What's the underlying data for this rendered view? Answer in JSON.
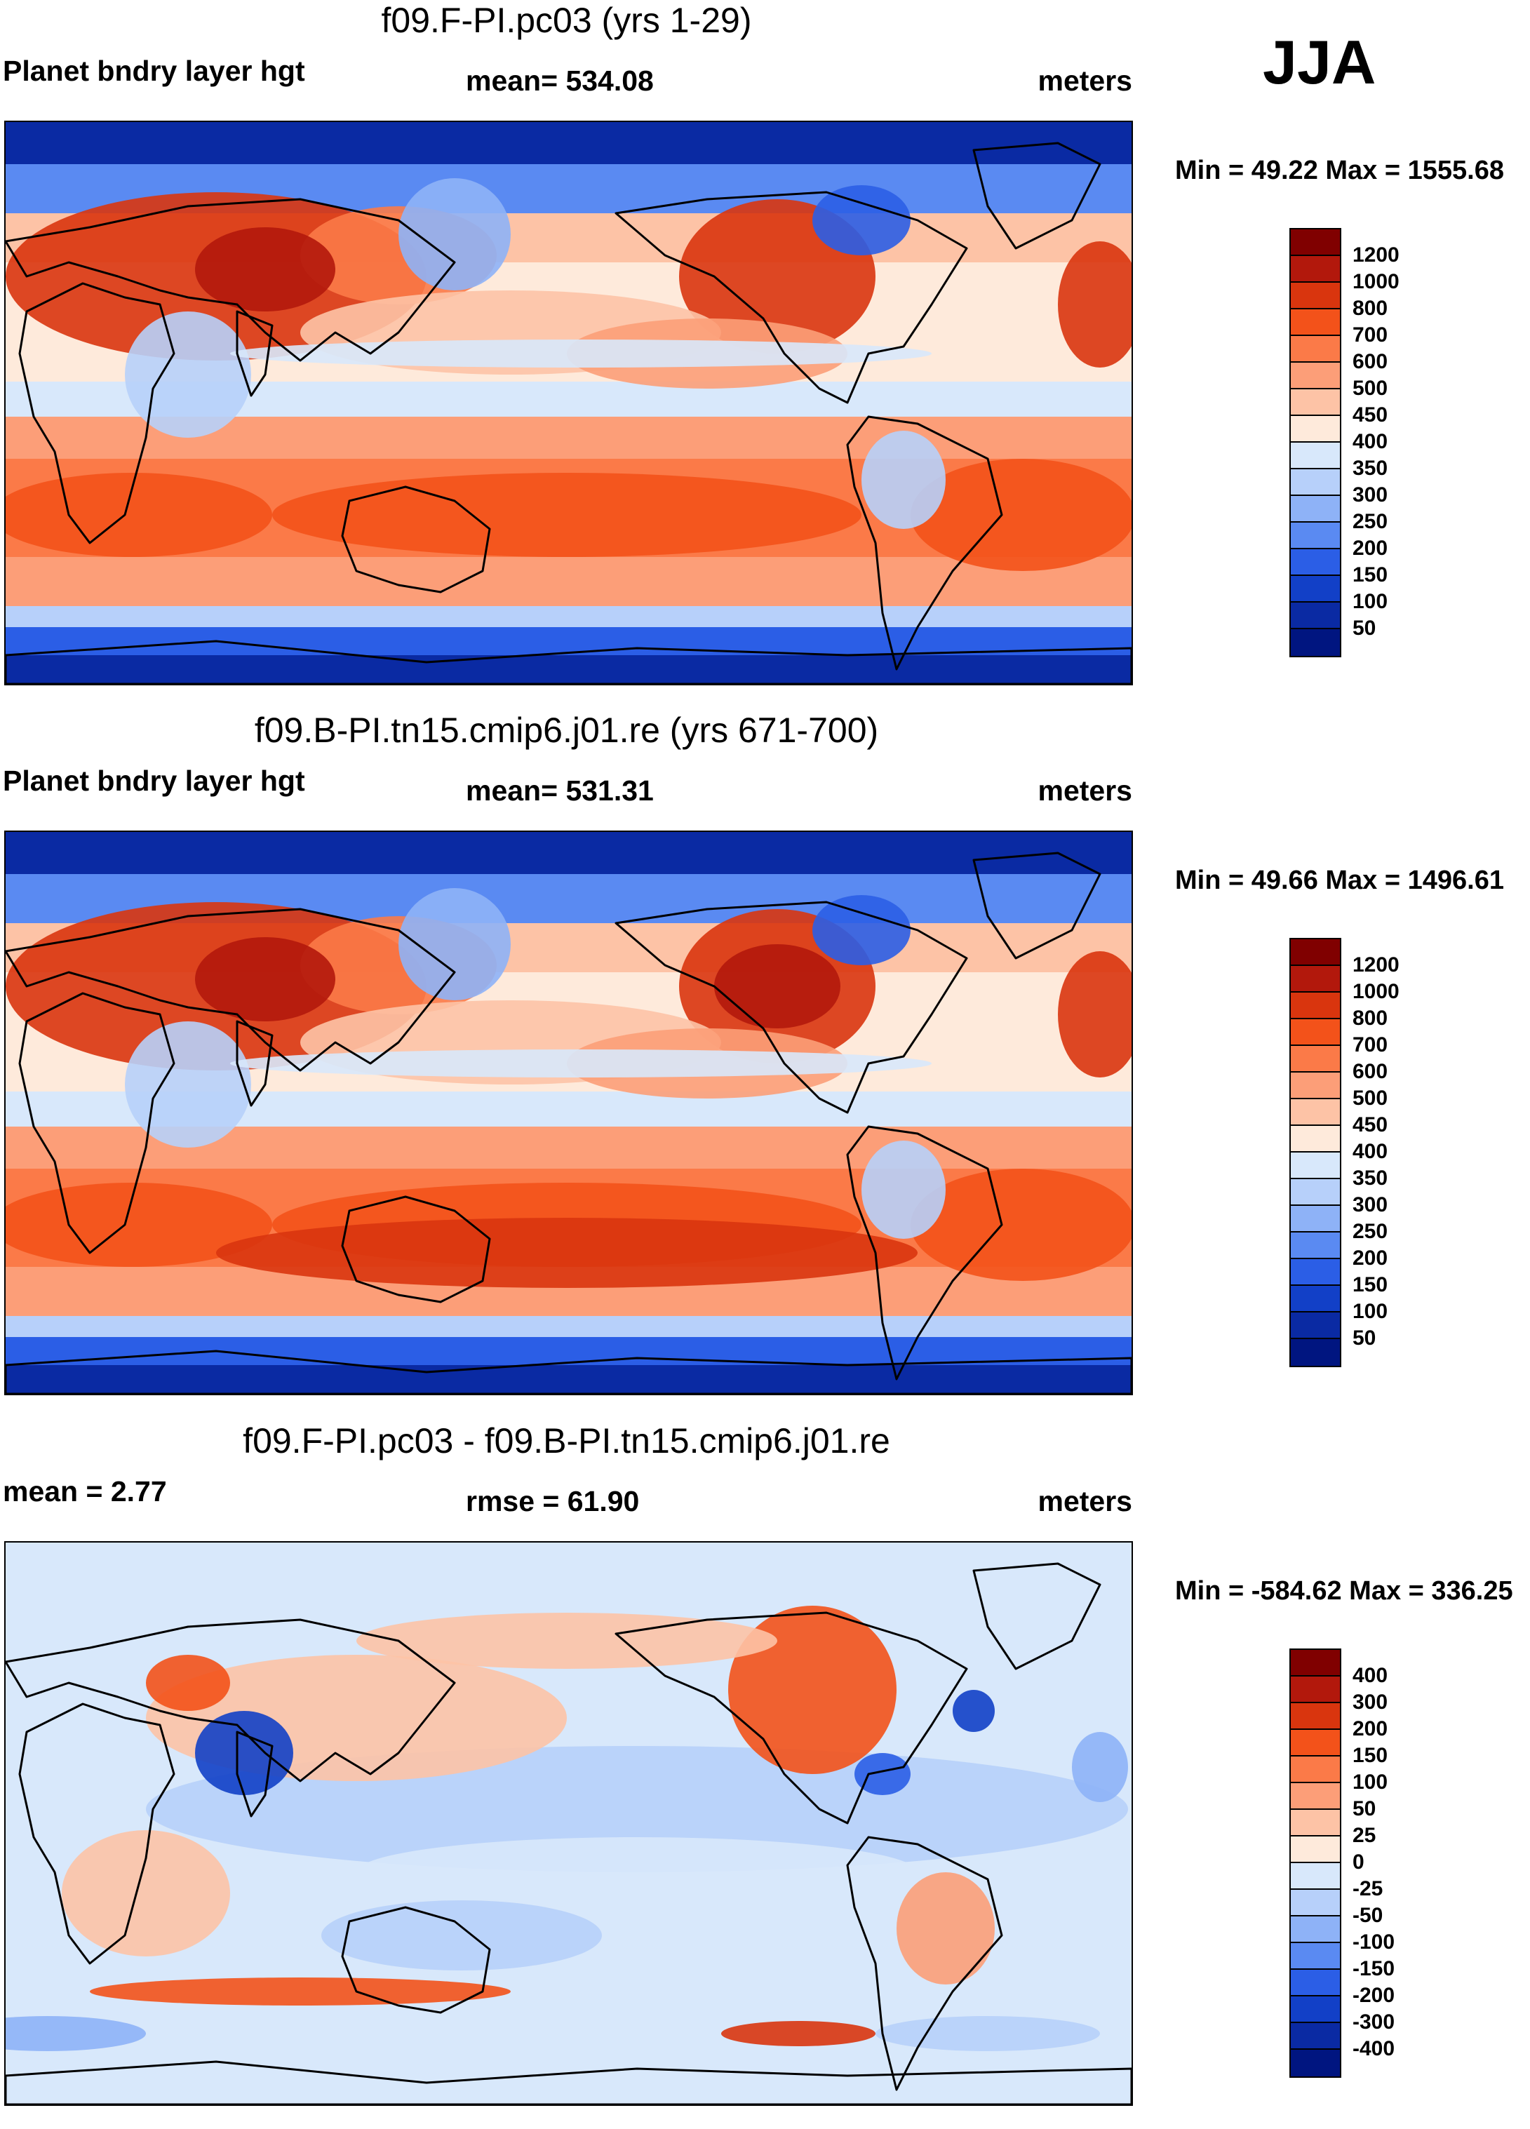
{
  "season": "JJA",
  "panels": [
    {
      "title": "f09.F-PI.pc03 (yrs 1-29)",
      "left": "Planet bndry layer hgt",
      "mid": "mean= 534.08",
      "right": "meters",
      "minmax": "Min =  49.22 Max = 1555.68",
      "levels": [
        "1200",
        "1000",
        "800",
        "700",
        "600",
        "500",
        "450",
        "400",
        "350",
        "300",
        "250",
        "200",
        "150",
        "100",
        "50"
      ],
      "colors": [
        "#800000",
        "#b2180c",
        "#d9350e",
        "#f3521a",
        "#fb7a48",
        "#fc9e78",
        "#fdc3a6",
        "#feeadb",
        "#d8e8fb",
        "#b7d0fa",
        "#8eb2f7",
        "#5a8af2",
        "#2b5ee6",
        "#1240c7",
        "#0a2aa3",
        "#001580"
      ],
      "field": "abs"
    },
    {
      "title": "f09.B-PI.tn15.cmip6.j01.re (yrs 671-700)",
      "left": "Planet bndry layer hgt",
      "mid": "mean= 531.31",
      "right": "meters",
      "minmax": "Min =  49.66 Max = 1496.61",
      "levels": [
        "1200",
        "1000",
        "800",
        "700",
        "600",
        "500",
        "450",
        "400",
        "350",
        "300",
        "250",
        "200",
        "150",
        "100",
        "50"
      ],
      "colors": [
        "#800000",
        "#b2180c",
        "#d9350e",
        "#f3521a",
        "#fb7a48",
        "#fc9e78",
        "#fdc3a6",
        "#feeadb",
        "#d8e8fb",
        "#b7d0fa",
        "#8eb2f7",
        "#5a8af2",
        "#2b5ee6",
        "#1240c7",
        "#0a2aa3",
        "#001580"
      ],
      "field": "abs"
    },
    {
      "title": "f09.F-PI.pc03 - f09.B-PI.tn15.cmip6.j01.re",
      "left": "mean =   2.77",
      "mid": "rmse =  61.90",
      "right": "meters",
      "minmax": "Min = -584.62 Max = 336.25",
      "levels": [
        "400",
        "300",
        "200",
        "150",
        "100",
        "50",
        "25",
        "0",
        "-25",
        "-50",
        "-100",
        "-150",
        "-200",
        "-300",
        "-400"
      ],
      "colors": [
        "#800000",
        "#b2180c",
        "#d9350e",
        "#f3521a",
        "#fb7a48",
        "#fc9e78",
        "#fdc3a6",
        "#feeadb",
        "#d8e8fb",
        "#b7d0fa",
        "#8eb2f7",
        "#5a8af2",
        "#2b5ee6",
        "#1240c7",
        "#0a2aa3",
        "#001580"
      ],
      "field": "diff"
    }
  ]
}
